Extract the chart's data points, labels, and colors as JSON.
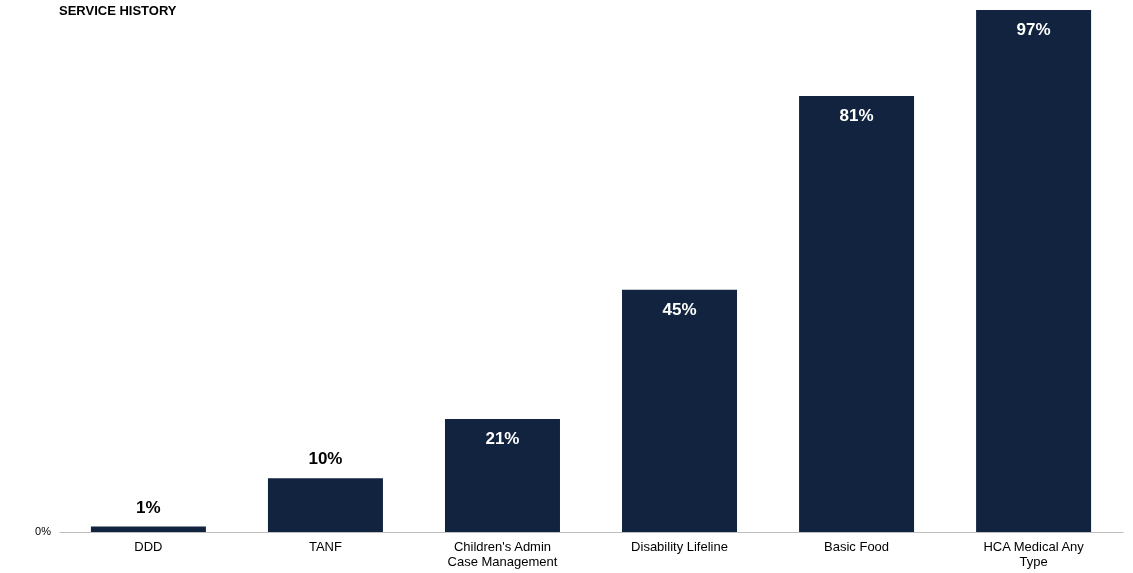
{
  "chart_data": {
    "type": "bar",
    "title": "SERVICE HISTORY",
    "categories": [
      "DDD",
      "TANF",
      "Children's Admin Case Management",
      "Disability Lifeline",
      "Basic Food",
      "HCA Medical Any Type"
    ],
    "values": [
      1,
      10,
      21,
      45,
      81,
      97
    ],
    "value_labels": [
      "1%",
      "10%",
      "21%",
      "45%",
      "81%",
      "97%"
    ],
    "color": "#12233f",
    "annotations": [
      "0%"
    ]
  }
}
